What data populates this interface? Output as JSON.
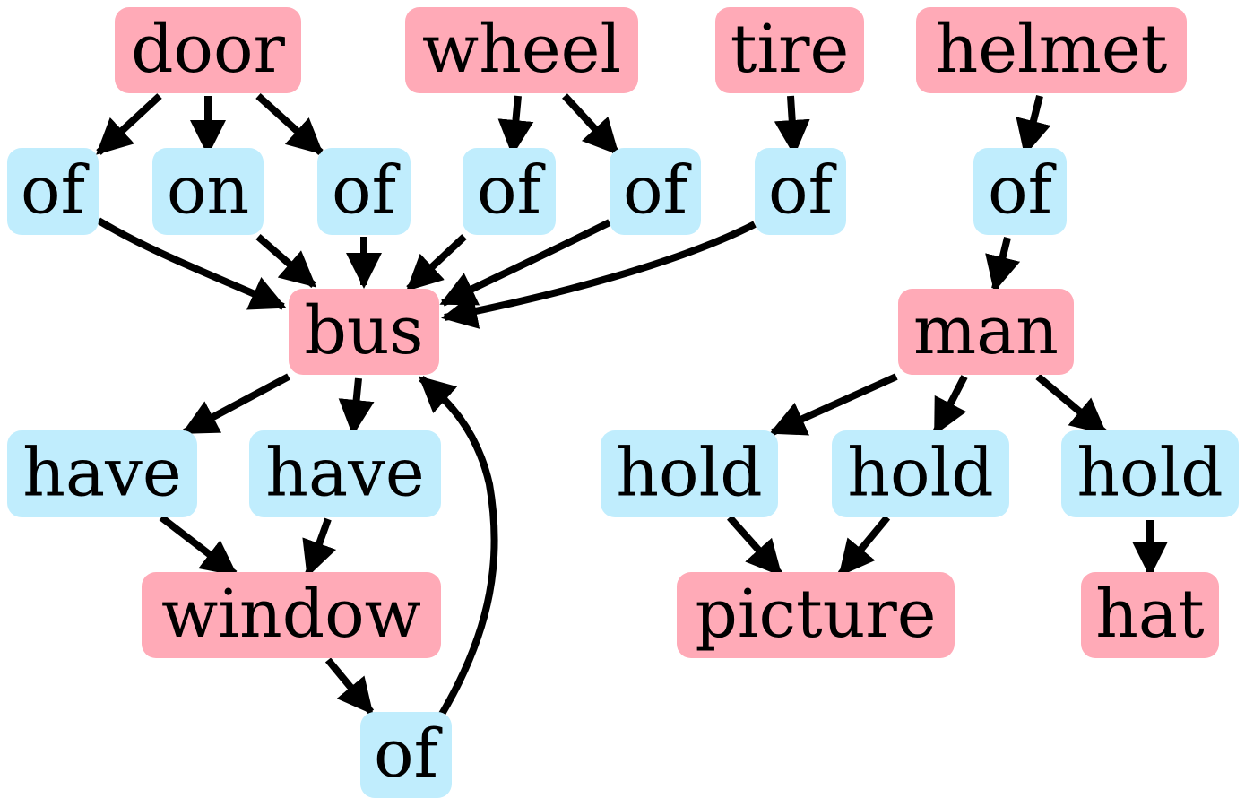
{
  "colors": {
    "object": "#ffaab7",
    "relation": "#c0edfd",
    "edge": "#000000"
  },
  "nodes": {
    "door": {
      "label": "door",
      "kind": "object"
    },
    "wheel": {
      "label": "wheel",
      "kind": "object"
    },
    "tire": {
      "label": "tire",
      "kind": "object"
    },
    "helmet": {
      "label": "helmet",
      "kind": "object"
    },
    "of1": {
      "label": "of",
      "kind": "relation"
    },
    "on1": {
      "label": "on",
      "kind": "relation"
    },
    "of2": {
      "label": "of",
      "kind": "relation"
    },
    "of3": {
      "label": "of",
      "kind": "relation"
    },
    "of4": {
      "label": "of",
      "kind": "relation"
    },
    "of5": {
      "label": "of",
      "kind": "relation"
    },
    "of6": {
      "label": "of",
      "kind": "relation"
    },
    "bus": {
      "label": "bus",
      "kind": "object"
    },
    "man": {
      "label": "man",
      "kind": "object"
    },
    "have1": {
      "label": "have",
      "kind": "relation"
    },
    "have2": {
      "label": "have",
      "kind": "relation"
    },
    "hold1": {
      "label": "hold",
      "kind": "relation"
    },
    "hold2": {
      "label": "hold",
      "kind": "relation"
    },
    "hold3": {
      "label": "hold",
      "kind": "relation"
    },
    "window": {
      "label": "window",
      "kind": "object"
    },
    "picture": {
      "label": "picture",
      "kind": "object"
    },
    "hat": {
      "label": "hat",
      "kind": "object"
    },
    "of7": {
      "label": "of",
      "kind": "relation"
    }
  },
  "edges": [
    [
      "door",
      "of1"
    ],
    [
      "door",
      "on1"
    ],
    [
      "door",
      "of2"
    ],
    [
      "wheel",
      "of3"
    ],
    [
      "wheel",
      "of4"
    ],
    [
      "tire",
      "of5"
    ],
    [
      "helmet",
      "of6"
    ],
    [
      "of1",
      "bus"
    ],
    [
      "on1",
      "bus"
    ],
    [
      "of2",
      "bus"
    ],
    [
      "of3",
      "bus"
    ],
    [
      "of4",
      "bus"
    ],
    [
      "of5",
      "bus"
    ],
    [
      "of6",
      "man"
    ],
    [
      "bus",
      "have1"
    ],
    [
      "bus",
      "have2"
    ],
    [
      "have1",
      "window"
    ],
    [
      "have2",
      "window"
    ],
    [
      "window",
      "of7"
    ],
    [
      "of7",
      "bus"
    ],
    [
      "man",
      "hold1"
    ],
    [
      "man",
      "hold2"
    ],
    [
      "man",
      "hold3"
    ],
    [
      "hold1",
      "picture"
    ],
    [
      "hold2",
      "picture"
    ],
    [
      "hold3",
      "hat"
    ]
  ]
}
